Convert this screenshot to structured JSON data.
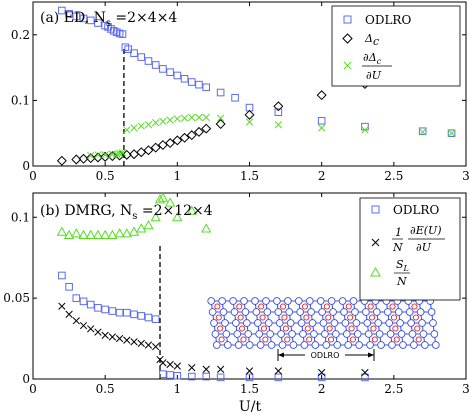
{
  "chart_data": [
    {
      "type": "scatter",
      "panel_label": "(a) ED, N",
      "panel_sub": "s",
      "panel_rest": " =2×4×4",
      "xlim": [
        0,
        3
      ],
      "ylim": [
        0,
        0.25
      ],
      "xticks": [
        "0",
        "0.5",
        "1",
        "1.5",
        "2",
        "2.5",
        "3"
      ],
      "yticks": [
        {
          "value": 0,
          "label": "0"
        },
        {
          "value": 0.1,
          "label": "0.1"
        },
        {
          "value": 0.2,
          "label": "0.2"
        }
      ],
      "vline_x": 0.63,
      "legend_position": "top-right",
      "series": [
        {
          "name": "ODLRO",
          "marker": "square",
          "color": "#5b6cf0",
          "points": [
            [
              0.2,
              0.237
            ],
            [
              0.25,
              0.232
            ],
            [
              0.3,
              0.228
            ],
            [
              0.35,
              0.225
            ],
            [
              0.4,
              0.222
            ],
            [
              0.45,
              0.218
            ],
            [
              0.5,
              0.214
            ],
            [
              0.52,
              0.212
            ],
            [
              0.54,
              0.209
            ],
            [
              0.56,
              0.206
            ],
            [
              0.58,
              0.204
            ],
            [
              0.6,
              0.202
            ],
            [
              0.62,
              0.201
            ],
            [
              0.64,
              0.181
            ],
            [
              0.66,
              0.178
            ],
            [
              0.7,
              0.172
            ],
            [
              0.75,
              0.166
            ],
            [
              0.8,
              0.16
            ],
            [
              0.85,
              0.154
            ],
            [
              0.9,
              0.148
            ],
            [
              0.95,
              0.143
            ],
            [
              1.0,
              0.138
            ],
            [
              1.05,
              0.133
            ],
            [
              1.1,
              0.128
            ],
            [
              1.15,
              0.124
            ],
            [
              1.2,
              0.12
            ],
            [
              1.3,
              0.112
            ],
            [
              1.4,
              0.104
            ],
            [
              1.5,
              0.089
            ],
            [
              1.7,
              0.082
            ],
            [
              2.0,
              0.069
            ],
            [
              2.3,
              0.06
            ],
            [
              2.7,
              0.053
            ],
            [
              2.9,
              0.05
            ]
          ]
        },
        {
          "name": "Δc",
          "marker": "diamond",
          "color": "#000000",
          "points": [
            [
              0.2,
              0.008
            ],
            [
              0.3,
              0.01
            ],
            [
              0.35,
              0.011
            ],
            [
              0.4,
              0.012
            ],
            [
              0.45,
              0.013
            ],
            [
              0.5,
              0.014
            ],
            [
              0.55,
              0.015
            ],
            [
              0.6,
              0.016
            ],
            [
              0.65,
              0.017
            ],
            [
              0.7,
              0.018
            ],
            [
              0.75,
              0.021
            ],
            [
              0.8,
              0.024
            ],
            [
              0.85,
              0.028
            ],
            [
              0.9,
              0.032
            ],
            [
              0.95,
              0.035
            ],
            [
              1.0,
              0.039
            ],
            [
              1.05,
              0.043
            ],
            [
              1.1,
              0.047
            ],
            [
              1.15,
              0.052
            ],
            [
              1.2,
              0.057
            ],
            [
              1.3,
              0.064
            ],
            [
              1.5,
              0.078
            ],
            [
              1.7,
              0.091
            ],
            [
              2.0,
              0.108
            ],
            [
              2.3,
              0.125
            ],
            [
              2.7,
              0.143
            ],
            [
              2.9,
              0.152
            ]
          ]
        },
        {
          "name": "∂Δc/∂U",
          "marker": "x",
          "color": "#55dd22",
          "points": [
            [
              0.4,
              0.016
            ],
            [
              0.45,
              0.017
            ],
            [
              0.5,
              0.017
            ],
            [
              0.55,
              0.018
            ],
            [
              0.58,
              0.018
            ],
            [
              0.6,
              0.019
            ],
            [
              0.62,
              0.02
            ],
            [
              0.65,
              0.055
            ],
            [
              0.7,
              0.058
            ],
            [
              0.75,
              0.061
            ],
            [
              0.8,
              0.063
            ],
            [
              0.85,
              0.066
            ],
            [
              0.9,
              0.068
            ],
            [
              0.95,
              0.07
            ],
            [
              1.0,
              0.072
            ],
            [
              1.05,
              0.073
            ],
            [
              1.1,
              0.074
            ],
            [
              1.15,
              0.074
            ],
            [
              1.2,
              0.074
            ],
            [
              1.3,
              0.073
            ],
            [
              1.5,
              0.067
            ],
            [
              1.7,
              0.063
            ],
            [
              2.0,
              0.058
            ],
            [
              2.3,
              0.055
            ],
            [
              2.7,
              0.052
            ],
            [
              2.9,
              0.05
            ]
          ]
        }
      ]
    },
    {
      "type": "scatter",
      "panel_label": "(b) DMRG, N",
      "panel_sub": "s",
      "panel_rest": " =2×12×4",
      "xlabel": "U/t",
      "xlim": [
        0,
        3
      ],
      "ylim": [
        0,
        0.115
      ],
      "xticks": [
        "0",
        "0.5",
        "1",
        "1.5",
        "2",
        "2.5",
        "3"
      ],
      "yticks": [
        {
          "value": 0,
          "label": "0"
        },
        {
          "value": 0.05,
          "label": "0.05"
        },
        {
          "value": 0.1,
          "label": "0.1"
        }
      ],
      "vline_x": 0.88,
      "legend_position": "top-right",
      "inset_label": "ODLRO",
      "series": [
        {
          "name": "ODLRO",
          "marker": "square",
          "color": "#5b6cf0",
          "points": [
            [
              0.2,
              0.064
            ],
            [
              0.25,
              0.057
            ],
            [
              0.3,
              0.05
            ],
            [
              0.35,
              0.048
            ],
            [
              0.4,
              0.046
            ],
            [
              0.45,
              0.044
            ],
            [
              0.5,
              0.043
            ],
            [
              0.55,
              0.042
            ],
            [
              0.6,
              0.041
            ],
            [
              0.65,
              0.041
            ],
            [
              0.7,
              0.04
            ],
            [
              0.75,
              0.039
            ],
            [
              0.8,
              0.038
            ],
            [
              0.85,
              0.037
            ],
            [
              0.9,
              0.003
            ],
            [
              0.95,
              0.0025
            ],
            [
              1.0,
              0.002
            ],
            [
              1.1,
              0.0015
            ],
            [
              1.2,
              0.0015
            ],
            [
              1.3,
              0.001
            ],
            [
              1.5,
              0.001
            ],
            [
              1.7,
              0.001
            ],
            [
              2.0,
              0.001
            ],
            [
              2.3,
              0.001
            ]
          ]
        },
        {
          "name": "1/N ∂E(U)/∂U",
          "marker": "x",
          "color": "#000000",
          "points": [
            [
              0.2,
              0.045
            ],
            [
              0.25,
              0.04
            ],
            [
              0.3,
              0.036
            ],
            [
              0.35,
              0.033
            ],
            [
              0.4,
              0.031
            ],
            [
              0.45,
              0.029
            ],
            [
              0.5,
              0.027
            ],
            [
              0.55,
              0.026
            ],
            [
              0.6,
              0.025
            ],
            [
              0.65,
              0.024
            ],
            [
              0.7,
              0.023
            ],
            [
              0.75,
              0.022
            ],
            [
              0.8,
              0.021
            ],
            [
              0.85,
              0.02
            ],
            [
              0.88,
              0.012
            ],
            [
              0.9,
              0.01
            ],
            [
              0.95,
              0.009
            ],
            [
              1.0,
              0.008
            ],
            [
              1.1,
              0.007
            ],
            [
              1.2,
              0.006
            ],
            [
              1.3,
              0.006
            ],
            [
              1.5,
              0.005
            ],
            [
              1.7,
              0.005
            ],
            [
              2.0,
              0.004
            ],
            [
              2.3,
              0.004
            ]
          ]
        },
        {
          "name": "S_L/N",
          "marker": "triangle",
          "color": "#55dd22",
          "points": [
            [
              0.2,
              0.091
            ],
            [
              0.25,
              0.089
            ],
            [
              0.3,
              0.09
            ],
            [
              0.35,
              0.089
            ],
            [
              0.4,
              0.089
            ],
            [
              0.45,
              0.089
            ],
            [
              0.5,
              0.089
            ],
            [
              0.55,
              0.089
            ],
            [
              0.6,
              0.09
            ],
            [
              0.65,
              0.09
            ],
            [
              0.7,
              0.091
            ],
            [
              0.75,
              0.093
            ],
            [
              0.8,
              0.095
            ],
            [
              0.85,
              0.1
            ],
            [
              0.88,
              0.111
            ],
            [
              0.9,
              0.112
            ],
            [
              0.95,
              0.109
            ],
            [
              1.0,
              0.1
            ],
            [
              1.1,
              0.104
            ],
            [
              1.2,
              0.093
            ]
          ]
        }
      ]
    }
  ]
}
